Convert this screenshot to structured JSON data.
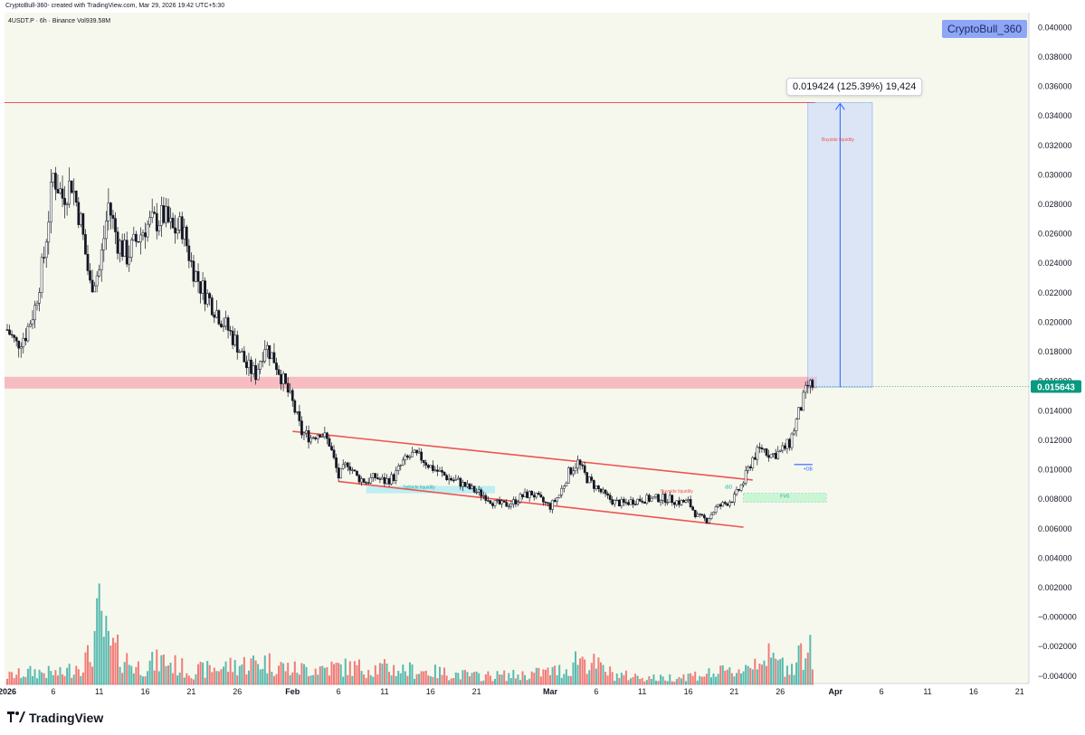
{
  "header": {
    "credit": "CryptoBull-360- created with TradingView.com, Mar 29, 2026 19:42 UTC+5:30",
    "symbol_line": "4USDT.P · 6h · Binance  Vol939.58M"
  },
  "watermark": "CryptoBull_360",
  "brand": {
    "logo_icon": "tradingview-logo-icon",
    "name": "TradingView"
  },
  "measure_label": "0.019424 (125.39%) 19,424",
  "colors": {
    "up": "#26a69a",
    "down": "#ef5350",
    "candle": "#131722",
    "background": "#f6f8ee",
    "price_badge": "#089981",
    "target_box": "#c7d7fb",
    "resistance_zone": "#f7a8b2"
  },
  "chart_data": {
    "type": "candlestick",
    "interval": "6h",
    "ylim": [
      -0.0045,
      0.041
    ],
    "y_ticks": [
      "0.040000",
      "0.038000",
      "0.036000",
      "0.034000",
      "0.032000",
      "0.030000",
      "0.028000",
      "0.026000",
      "0.024000",
      "0.022000",
      "0.020000",
      "0.018000",
      "0.016000",
      "0.014000",
      "0.012000",
      "0.010000",
      "0.008000",
      "0.006000",
      "0.004000",
      "0.002000",
      "−0.000000",
      "−0.002000",
      "−0.004000"
    ],
    "y_tick_values": [
      0.04,
      0.038,
      0.036,
      0.034,
      0.032,
      0.03,
      0.028,
      0.026,
      0.024,
      0.022,
      0.02,
      0.018,
      0.016,
      0.014,
      0.012,
      0.01,
      0.008,
      0.006,
      0.004,
      0.002,
      0,
      -0.002,
      -0.004
    ],
    "x_ticks": [
      {
        "label": "2026",
        "day": 0,
        "bold": true
      },
      {
        "label": "6",
        "day": 5
      },
      {
        "label": "11",
        "day": 10
      },
      {
        "label": "16",
        "day": 15
      },
      {
        "label": "21",
        "day": 20
      },
      {
        "label": "26",
        "day": 25
      },
      {
        "label": "Feb",
        "day": 31,
        "bold": true
      },
      {
        "label": "6",
        "day": 36
      },
      {
        "label": "11",
        "day": 41
      },
      {
        "label": "16",
        "day": 46
      },
      {
        "label": "21",
        "day": 51
      },
      {
        "label": "Mar",
        "day": 59,
        "bold": true
      },
      {
        "label": "6",
        "day": 64
      },
      {
        "label": "11",
        "day": 69
      },
      {
        "label": "16",
        "day": 74
      },
      {
        "label": "21",
        "day": 79
      },
      {
        "label": "26",
        "day": 84
      },
      {
        "label": "Apr",
        "day": 90,
        "bold": true
      },
      {
        "label": "6",
        "day": 95
      },
      {
        "label": "11",
        "day": 100
      },
      {
        "label": "16",
        "day": 105
      },
      {
        "label": "21",
        "day": 110
      }
    ],
    "price_path": [
      [
        0,
        0.0195
      ],
      [
        1,
        0.0185
      ],
      [
        2,
        0.0192
      ],
      [
        3,
        0.021
      ],
      [
        4,
        0.0245
      ],
      [
        5,
        0.03
      ],
      [
        6,
        0.0285
      ],
      [
        7,
        0.0295
      ],
      [
        8,
        0.0268
      ],
      [
        9,
        0.0225
      ],
      [
        10,
        0.0235
      ],
      [
        11,
        0.028
      ],
      [
        12,
        0.0255
      ],
      [
        13,
        0.0245
      ],
      [
        14,
        0.0255
      ],
      [
        15,
        0.0265
      ],
      [
        16,
        0.0268
      ],
      [
        17,
        0.0272
      ],
      [
        18,
        0.0262
      ],
      [
        19,
        0.0265
      ],
      [
        20,
        0.024
      ],
      [
        21,
        0.0225
      ],
      [
        22,
        0.0215
      ],
      [
        23,
        0.0205
      ],
      [
        24,
        0.0195
      ],
      [
        25,
        0.0185
      ],
      [
        26,
        0.017
      ],
      [
        27,
        0.0165
      ],
      [
        28,
        0.0185
      ],
      [
        29,
        0.0175
      ],
      [
        30,
        0.016
      ],
      [
        31,
        0.0145
      ],
      [
        32,
        0.0125
      ],
      [
        33,
        0.0122
      ],
      [
        34,
        0.0126
      ],
      [
        35,
        0.0118
      ],
      [
        36,
        0.0095
      ],
      [
        37,
        0.0105
      ],
      [
        38,
        0.0095
      ],
      [
        39,
        0.0092
      ],
      [
        40,
        0.0095
      ],
      [
        41,
        0.0092
      ],
      [
        42,
        0.0095
      ],
      [
        43,
        0.0105
      ],
      [
        44,
        0.011
      ],
      [
        45,
        0.0108
      ],
      [
        46,
        0.0102
      ],
      [
        47,
        0.0098
      ],
      [
        48,
        0.0094
      ],
      [
        49,
        0.0092
      ],
      [
        50,
        0.0088
      ],
      [
        51,
        0.0085
      ],
      [
        52,
        0.0082
      ],
      [
        53,
        0.0077
      ],
      [
        54,
        0.0076
      ],
      [
        55,
        0.0078
      ],
      [
        56,
        0.0082
      ],
      [
        57,
        0.0084
      ],
      [
        58,
        0.0079
      ],
      [
        59,
        0.0075
      ],
      [
        60,
        0.0083
      ],
      [
        61,
        0.0098
      ],
      [
        62,
        0.0105
      ],
      [
        63,
        0.0094
      ],
      [
        64,
        0.0088
      ],
      [
        65,
        0.0082
      ],
      [
        66,
        0.0078
      ],
      [
        67,
        0.0077
      ],
      [
        68,
        0.0079
      ],
      [
        69,
        0.008
      ],
      [
        70,
        0.008
      ],
      [
        71,
        0.0081
      ],
      [
        72,
        0.008
      ],
      [
        73,
        0.0078
      ],
      [
        74,
        0.0078
      ],
      [
        75,
        0.0068
      ],
      [
        76,
        0.0066
      ],
      [
        77,
        0.0074
      ],
      [
        78,
        0.0077
      ],
      [
        79,
        0.0081
      ],
      [
        80,
        0.0092
      ],
      [
        81,
        0.0108
      ],
      [
        82,
        0.0115
      ],
      [
        83,
        0.011
      ],
      [
        84,
        0.0112
      ],
      [
        85,
        0.0118
      ],
      [
        86,
        0.0138
      ],
      [
        87,
        0.0157
      ]
    ],
    "volume_path": [
      [
        0,
        0.0008
      ],
      [
        3,
        0.0012
      ],
      [
        6,
        0.001
      ],
      [
        9,
        0.0025
      ],
      [
        10,
        0.0062
      ],
      [
        11,
        0.0035
      ],
      [
        14,
        0.0016
      ],
      [
        17,
        0.0022
      ],
      [
        20,
        0.0012
      ],
      [
        25,
        0.0018
      ],
      [
        28,
        0.0021
      ],
      [
        31,
        0.0014
      ],
      [
        36,
        0.0016
      ],
      [
        41,
        0.0015
      ],
      [
        46,
        0.0012
      ],
      [
        51,
        0.0008
      ],
      [
        56,
        0.0009
      ],
      [
        61,
        0.0014
      ],
      [
        62,
        0.0026
      ],
      [
        66,
        0.0009
      ],
      [
        71,
        0.0006
      ],
      [
        76,
        0.001
      ],
      [
        79,
        0.0012
      ],
      [
        81,
        0.0019
      ],
      [
        82,
        0.0029
      ],
      [
        83,
        0.0022
      ],
      [
        85,
        0.0016
      ],
      [
        86,
        0.0028
      ],
      [
        87,
        0.0029
      ]
    ],
    "current_price": "0.015643",
    "current_price_value": 0.015643,
    "resistance_line": 0.0349,
    "resistance_zone": [
      0.0155,
      0.0163
    ],
    "target_box": {
      "day_start": 87,
      "day_end": 94,
      "bottom": 0.0156,
      "top": 0.0349
    },
    "channel_upper": [
      [
        31,
        0.0126
      ],
      [
        81,
        0.0093
      ]
    ],
    "channel_lower": [
      [
        36,
        0.0092
      ],
      [
        80,
        0.0061
      ]
    ],
    "annotations": [
      {
        "text": "Buyside liquidity",
        "day": 88.5,
        "y": 0.0323,
        "color": "#ef5350"
      },
      {
        "text": "+OB",
        "day": 86.5,
        "y": 0.00995,
        "color": "#2962ff"
      },
      {
        "text": "FVG",
        "day": 84,
        "y": 0.0081,
        "color": "#26a69a"
      },
      {
        "text": "Buyside liquidity",
        "day": 71,
        "y": 0.00845,
        "color": "#ef5350"
      },
      {
        "text": "Sellside liquidity",
        "day": 43,
        "y": 0.0087,
        "color": "#26a69a"
      },
      {
        "text": "iBD",
        "day": 78,
        "y": 0.0087,
        "color": "#26a69a"
      }
    ]
  }
}
